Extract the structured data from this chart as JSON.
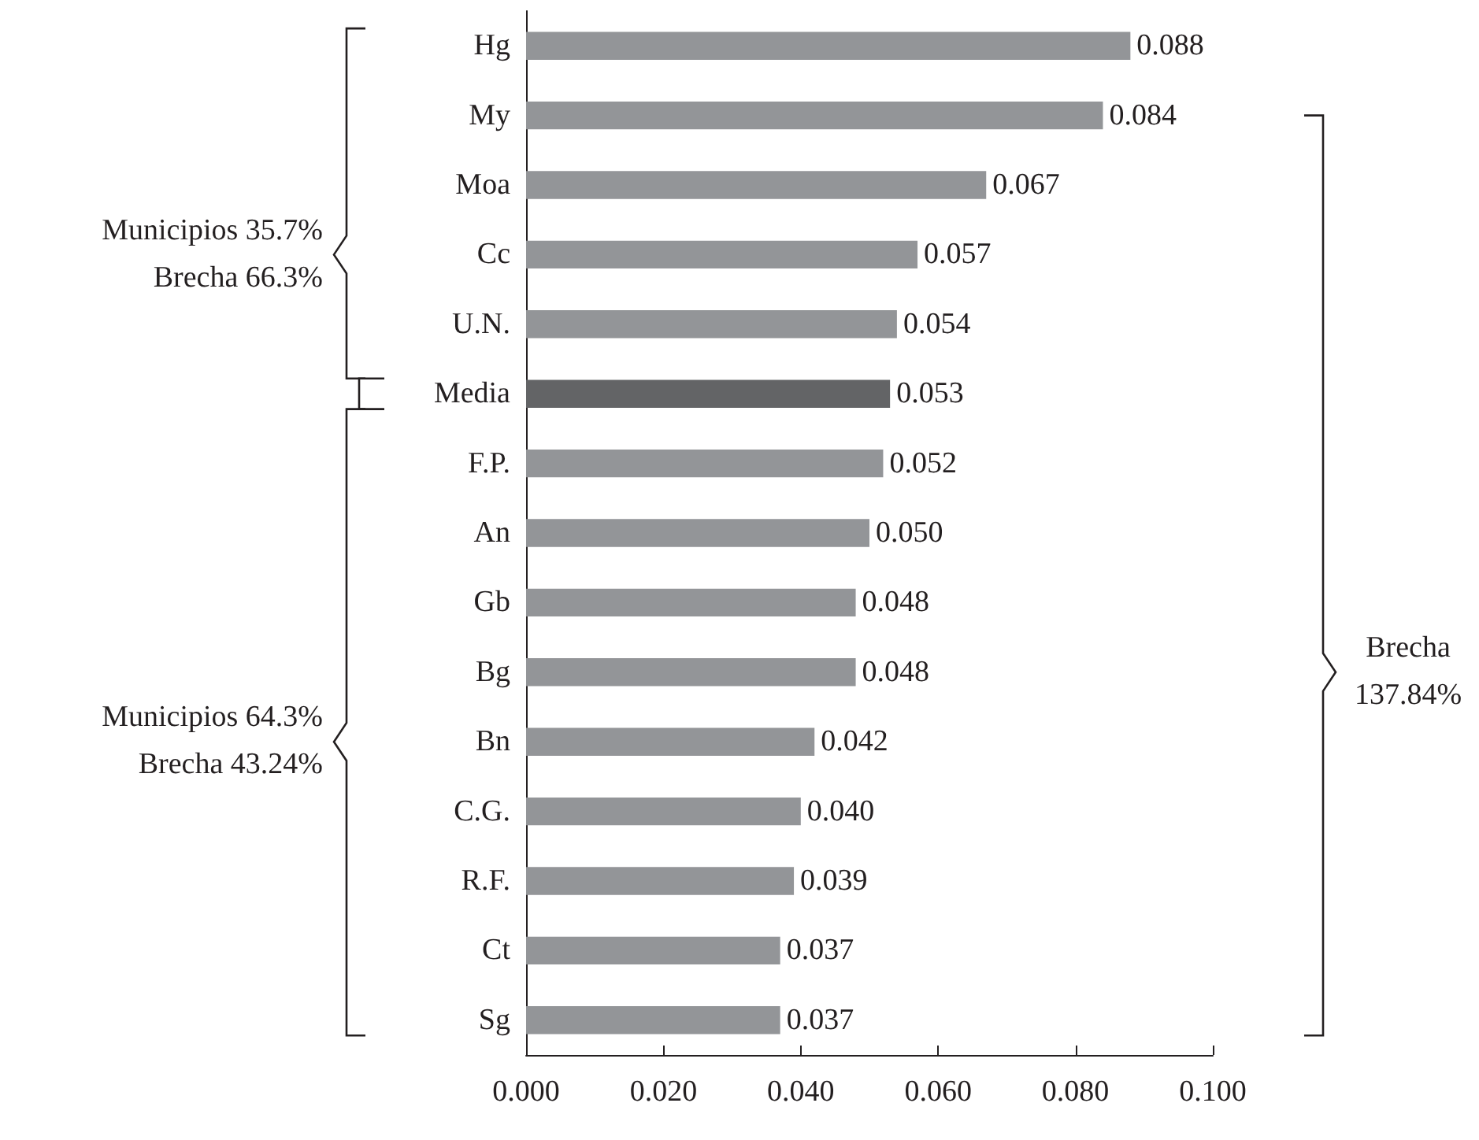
{
  "chart_data": {
    "type": "bar",
    "orientation": "horizontal",
    "categories": [
      "Hg",
      "My",
      "Moa",
      "Cc",
      "U.N.",
      "Media",
      "F.P.",
      "An",
      "Gb",
      "Bg",
      "Bn",
      "C.G.",
      "R.F.",
      "Ct",
      "Sg"
    ],
    "values": [
      0.088,
      0.084,
      0.067,
      0.057,
      0.054,
      0.053,
      0.052,
      0.05,
      0.048,
      0.048,
      0.042,
      0.04,
      0.039,
      0.037,
      0.037
    ],
    "value_labels": [
      "0.088",
      "0.084",
      "0.067",
      "0.057",
      "0.054",
      "0.053",
      "0.052",
      "0.050",
      "0.048",
      "0.048",
      "0.042",
      "0.040",
      "0.039",
      "0.037",
      "0.037"
    ],
    "colors": [
      "#939598",
      "#939598",
      "#939598",
      "#939598",
      "#939598",
      "#636466",
      "#939598",
      "#939598",
      "#939598",
      "#939598",
      "#939598",
      "#939598",
      "#939598",
      "#939598",
      "#939598"
    ],
    "xlim": [
      0,
      0.1
    ],
    "xticks": [
      {
        "value": 0,
        "label": "0.000"
      },
      {
        "value": 0.02,
        "label": "0.020"
      },
      {
        "value": 0.04,
        "label": "0.040"
      },
      {
        "value": 0.06,
        "label": "0.060"
      },
      {
        "value": 0.08,
        "label": "0.080"
      },
      {
        "value": 0.1,
        "label": "0.100"
      }
    ],
    "grid": false,
    "annotations": [
      "Municipios 35.7%\nBrecha 66.3%",
      "Municipios 64.3%\nBrecha 43.24%",
      "Brecha\n137.84%"
    ]
  }
}
